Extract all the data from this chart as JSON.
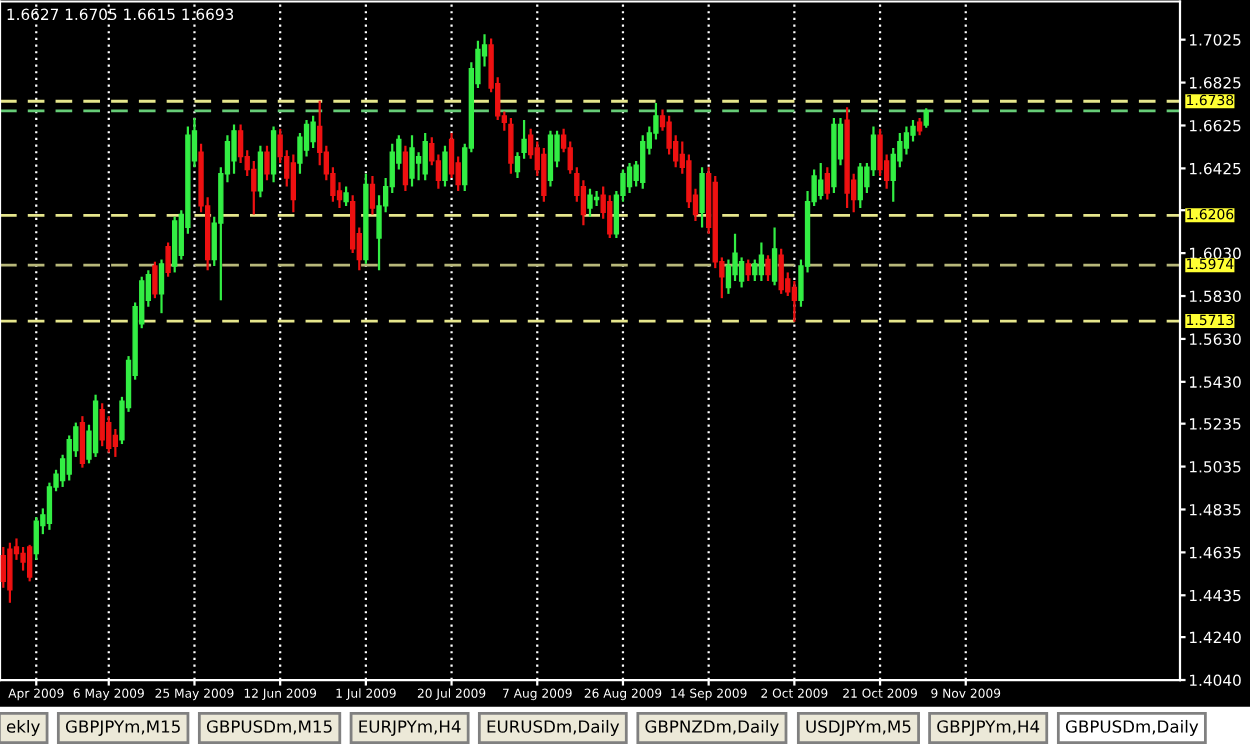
{
  "chart_data": {
    "type": "candlestick",
    "categories": [
      null,
      null,
      null,
      null,
      null,
      "Apr 2009",
      null,
      null,
      null,
      null,
      null,
      null,
      null,
      null,
      null,
      null,
      "6 May 2009",
      null,
      null,
      null,
      null,
      null,
      null,
      null,
      null,
      null,
      null,
      null,
      null,
      "25 May 2009",
      null,
      null,
      null,
      null,
      null,
      null,
      null,
      null,
      null,
      null,
      null,
      null,
      "12 Jun 2009",
      null,
      null,
      null,
      null,
      null,
      null,
      null,
      null,
      null,
      null,
      null,
      null,
      "1 Jul 2009",
      null,
      null,
      null,
      null,
      null,
      null,
      null,
      null,
      null,
      null,
      null,
      null,
      "20 Jul 2009",
      null,
      null,
      null,
      null,
      null,
      null,
      null,
      null,
      null,
      null,
      null,
      null,
      "7 Aug 2009",
      null,
      null,
      null,
      null,
      null,
      null,
      null,
      null,
      null,
      null,
      null,
      null,
      "26 Aug 2009",
      null,
      null,
      null,
      null,
      null,
      null,
      null,
      null,
      null,
      null,
      null,
      null,
      "14 Sep 2009",
      null,
      null,
      null,
      null,
      null,
      null,
      null,
      null,
      null,
      null,
      null,
      null,
      "2 Oct 2009",
      null,
      null,
      null,
      null,
      null,
      null,
      null,
      null,
      null,
      null,
      null,
      null,
      "21 Oct 2009",
      null,
      null,
      null,
      null,
      null,
      null,
      null,
      null,
      null,
      null,
      null,
      null,
      "9 Nov 2009",
      null,
      null,
      null,
      null,
      null,
      null,
      null,
      null,
      null,
      null,
      null,
      null,
      null,
      null,
      null,
      null,
      null,
      null,
      null,
      null,
      null,
      null,
      null,
      null,
      null,
      null,
      null,
      null,
      null,
      null,
      null,
      null
    ],
    "ohlc": [
      [
        1.462,
        1.466,
        1.447,
        1.45
      ],
      [
        1.465,
        1.468,
        1.44,
        1.446
      ],
      [
        1.466,
        1.47,
        1.46,
        1.463
      ],
      [
        1.463,
        1.466,
        1.455,
        1.459
      ],
      [
        1.466,
        1.467,
        1.45,
        1.452
      ],
      [
        1.463,
        1.48,
        1.46,
        1.478
      ],
      [
        1.476,
        1.484,
        1.472,
        1.481
      ],
      [
        1.477,
        1.496,
        1.474,
        1.494
      ],
      [
        1.494,
        1.502,
        1.492,
        1.5
      ],
      [
        1.497,
        1.509,
        1.494,
        1.507
      ],
      [
        1.5,
        1.518,
        1.497,
        1.516
      ],
      [
        1.511,
        1.524,
        1.508,
        1.522
      ],
      [
        1.524,
        1.527,
        1.503,
        1.505
      ],
      [
        1.507,
        1.523,
        1.505,
        1.52
      ],
      [
        1.51,
        1.537,
        1.508,
        1.534
      ],
      [
        1.53,
        1.533,
        1.513,
        1.516
      ],
      [
        1.524,
        1.527,
        1.51,
        1.512
      ],
      [
        1.518,
        1.521,
        1.508,
        1.513
      ],
      [
        1.516,
        1.536,
        1.514,
        1.534
      ],
      [
        1.531,
        1.555,
        1.529,
        1.553
      ],
      [
        1.546,
        1.58,
        1.544,
        1.578
      ],
      [
        1.57,
        1.592,
        1.568,
        1.59
      ],
      [
        1.581,
        1.595,
        1.578,
        1.593
      ],
      [
        1.597,
        1.599,
        1.582,
        1.584
      ],
      [
        1.584,
        1.6,
        1.575,
        1.598
      ],
      [
        1.606,
        1.608,
        1.592,
        1.594
      ],
      [
        1.597,
        1.62,
        1.594,
        1.618
      ],
      [
        1.602,
        1.623,
        1.6,
        1.621
      ],
      [
        1.615,
        1.662,
        1.612,
        1.658
      ],
      [
        1.646,
        1.666,
        1.643,
        1.66
      ],
      [
        1.65,
        1.654,
        1.622,
        1.625
      ],
      [
        1.625,
        1.629,
        1.595,
        1.6
      ],
      [
        1.6,
        1.62,
        1.597,
        1.617
      ],
      [
        1.617,
        1.643,
        1.581,
        1.64
      ],
      [
        1.64,
        1.658,
        1.636,
        1.655
      ],
      [
        1.646,
        1.663,
        1.64,
        1.66
      ],
      [
        1.66,
        1.663,
        1.645,
        1.648
      ],
      [
        1.648,
        1.651,
        1.639,
        1.642
      ],
      [
        1.642,
        1.646,
        1.621,
        1.632
      ],
      [
        1.632,
        1.653,
        1.629,
        1.65
      ],
      [
        1.65,
        1.653,
        1.637,
        1.64
      ],
      [
        1.64,
        1.662,
        1.636,
        1.66
      ],
      [
        1.658,
        1.661,
        1.645,
        1.648
      ],
      [
        1.648,
        1.651,
        1.634,
        1.638
      ],
      [
        1.645,
        1.649,
        1.622,
        1.628
      ],
      [
        1.645,
        1.659,
        1.64,
        1.657
      ],
      [
        1.651,
        1.665,
        1.648,
        1.663
      ],
      [
        1.655,
        1.667,
        1.652,
        1.664
      ],
      [
        1.662,
        1.674,
        1.644,
        1.65
      ],
      [
        1.65,
        1.653,
        1.637,
        1.64
      ],
      [
        1.64,
        1.643,
        1.627,
        1.63
      ],
      [
        1.632,
        1.636,
        1.624,
        1.628
      ],
      [
        1.627,
        1.634,
        1.625,
        1.631
      ],
      [
        1.627,
        1.63,
        1.603,
        1.605
      ],
      [
        1.612,
        1.615,
        1.595,
        1.6
      ],
      [
        1.6,
        1.64,
        1.598,
        1.635
      ],
      [
        1.635,
        1.639,
        1.621,
        1.624
      ],
      [
        1.61,
        1.63,
        1.595,
        1.625
      ],
      [
        1.625,
        1.638,
        1.622,
        1.634
      ],
      [
        1.634,
        1.654,
        1.631,
        1.65
      ],
      [
        1.645,
        1.658,
        1.642,
        1.656
      ],
      [
        1.65,
        1.653,
        1.632,
        1.635
      ],
      [
        1.638,
        1.658,
        1.634,
        1.652
      ],
      [
        1.645,
        1.65,
        1.637,
        1.648
      ],
      [
        1.64,
        1.659,
        1.637,
        1.655
      ],
      [
        1.654,
        1.657,
        1.644,
        1.646
      ],
      [
        1.646,
        1.649,
        1.633,
        1.637
      ],
      [
        1.637,
        1.653,
        1.634,
        1.65
      ],
      [
        1.656,
        1.659,
        1.638,
        1.64
      ],
      [
        1.645,
        1.648,
        1.632,
        1.635
      ],
      [
        1.635,
        1.654,
        1.632,
        1.652
      ],
      [
        1.652,
        1.692,
        1.65,
        1.689
      ],
      [
        1.682,
        1.702,
        1.68,
        1.698
      ],
      [
        1.695,
        1.705,
        1.69,
        1.7
      ],
      [
        1.7,
        1.703,
        1.678,
        1.68
      ],
      [
        1.682,
        1.685,
        1.665,
        1.667
      ],
      [
        1.667,
        1.669,
        1.66,
        1.664
      ],
      [
        1.663,
        1.666,
        1.64,
        1.645
      ],
      [
        1.641,
        1.65,
        1.638,
        1.648
      ],
      [
        1.65,
        1.665,
        1.647,
        1.656
      ],
      [
        1.658,
        1.661,
        1.647,
        1.649
      ],
      [
        1.652,
        1.655,
        1.639,
        1.642
      ],
      [
        1.649,
        1.652,
        1.627,
        1.63
      ],
      [
        1.637,
        1.66,
        1.634,
        1.658
      ],
      [
        1.646,
        1.66,
        1.643,
        1.658
      ],
      [
        1.658,
        1.661,
        1.65,
        1.652
      ],
      [
        1.652,
        1.655,
        1.64,
        1.642
      ],
      [
        1.64,
        1.643,
        1.627,
        1.63
      ],
      [
        1.634,
        1.637,
        1.616,
        1.621
      ],
      [
        1.624,
        1.633,
        1.62,
        1.63
      ],
      [
        1.628,
        1.632,
        1.625,
        1.629
      ],
      [
        1.63,
        1.634,
        1.619,
        1.622
      ],
      [
        1.627,
        1.63,
        1.61,
        1.612
      ],
      [
        1.612,
        1.632,
        1.61,
        1.63
      ],
      [
        1.63,
        1.642,
        1.627,
        1.64
      ],
      [
        1.634,
        1.645,
        1.631,
        1.643
      ],
      [
        1.637,
        1.646,
        1.634,
        1.644
      ],
      [
        1.636,
        1.658,
        1.633,
        1.655
      ],
      [
        1.652,
        1.662,
        1.649,
        1.659
      ],
      [
        1.659,
        1.673,
        1.656,
        1.667
      ],
      [
        1.667,
        1.67,
        1.66,
        1.662
      ],
      [
        1.664,
        1.667,
        1.649,
        1.652
      ],
      [
        1.655,
        1.658,
        1.643,
        1.646
      ],
      [
        1.649,
        1.655,
        1.64,
        1.643
      ],
      [
        1.646,
        1.649,
        1.624,
        1.627
      ],
      [
        1.63,
        1.633,
        1.618,
        1.621
      ],
      [
        1.622,
        1.643,
        1.615,
        1.64
      ],
      [
        1.64,
        1.643,
        1.612,
        1.615
      ],
      [
        1.636,
        1.639,
        1.596,
        1.599
      ],
      [
        1.599,
        1.601,
        1.582,
        1.592
      ],
      [
        1.587,
        1.6,
        1.584,
        1.597
      ],
      [
        1.593,
        1.612,
        1.59,
        1.603
      ],
      [
        1.59,
        1.601,
        1.587,
        1.599
      ],
      [
        1.598,
        1.6,
        1.59,
        1.593
      ],
      [
        1.593,
        1.6,
        1.59,
        1.598
      ],
      [
        1.593,
        1.608,
        1.59,
        1.602
      ],
      [
        1.6,
        1.602,
        1.59,
        1.593
      ],
      [
        1.59,
        1.615,
        1.588,
        1.605
      ],
      [
        1.602,
        1.605,
        1.584,
        1.586
      ],
      [
        1.591,
        1.594,
        1.583,
        1.585
      ],
      [
        1.587,
        1.59,
        1.571,
        1.581
      ],
      [
        1.581,
        1.6,
        1.578,
        1.597
      ],
      [
        1.597,
        1.632,
        1.594,
        1.627
      ],
      [
        1.627,
        1.642,
        1.625,
        1.639
      ],
      [
        1.63,
        1.645,
        1.628,
        1.637
      ],
      [
        1.64,
        1.643,
        1.628,
        1.631
      ],
      [
        1.634,
        1.666,
        1.631,
        1.663
      ],
      [
        1.647,
        1.666,
        1.644,
        1.663
      ],
      [
        1.665,
        1.671,
        1.624,
        1.631
      ],
      [
        1.637,
        1.64,
        1.622,
        1.628
      ],
      [
        1.628,
        1.645,
        1.624,
        1.643
      ],
      [
        1.634,
        1.645,
        1.631,
        1.643
      ],
      [
        1.642,
        1.662,
        1.639,
        1.658
      ],
      [
        1.658,
        1.661,
        1.639,
        1.642
      ],
      [
        1.646,
        1.649,
        1.633,
        1.637
      ],
      [
        1.637,
        1.652,
        1.627,
        1.649
      ],
      [
        1.646,
        1.659,
        1.643,
        1.655
      ],
      [
        1.652,
        1.662,
        1.649,
        1.659
      ],
      [
        1.658,
        1.665,
        1.655,
        1.662
      ],
      [
        1.664,
        1.666,
        1.658,
        1.66
      ],
      [
        1.6627,
        1.6705,
        1.6615,
        1.6693
      ],
      null,
      null,
      null,
      null,
      null,
      null,
      null,
      null,
      null,
      null,
      null,
      null,
      null,
      null,
      null,
      null,
      null,
      null,
      null,
      null,
      null,
      null,
      null,
      null,
      null,
      null,
      null,
      null,
      null,
      null,
      null,
      null,
      null,
      null,
      null,
      null,
      null,
      null
    ],
    "colors": [
      "#ee1111",
      "#ee1111",
      "#ee1111",
      "#ee1111",
      "#ee1111",
      "#33ee44",
      "#33ee44",
      "#33ee44",
      "#33ee44",
      "#33ee44",
      "#33ee44",
      "#33ee44",
      "#ee1111",
      "#33ee44",
      "#33ee44",
      "#ee1111",
      "#ee1111",
      "#ee1111",
      "#33ee44",
      "#33ee44",
      "#33ee44",
      "#33ee44",
      "#33ee44",
      "#ee1111",
      "#33ee44",
      "#ee1111",
      "#33ee44",
      "#33ee44",
      "#33ee44",
      "#33ee44",
      "#ee1111",
      "#ee1111",
      "#33ee44",
      "#33ee44",
      "#33ee44",
      "#33ee44",
      "#ee1111",
      "#ee1111",
      "#ee1111",
      "#33ee44",
      "#ee1111",
      "#33ee44",
      "#ee1111",
      "#ee1111",
      "#ee1111",
      "#33ee44",
      "#33ee44",
      "#33ee44",
      "#ee1111",
      "#ee1111",
      "#ee1111",
      "#ee1111",
      "#33ee44",
      "#ee1111",
      "#ee1111",
      "#33ee44",
      "#ee1111",
      "#33ee44",
      "#33ee44",
      "#33ee44",
      "#33ee44",
      "#ee1111",
      "#33ee44",
      "#33ee44",
      "#33ee44",
      "#ee1111",
      "#ee1111",
      "#33ee44",
      "#ee1111",
      "#ee1111",
      "#33ee44",
      "#33ee44",
      "#33ee44",
      "#33ee44",
      "#ee1111",
      "#ee1111",
      "#ee1111",
      "#ee1111",
      "#33ee44",
      "#33ee44",
      "#ee1111",
      "#ee1111",
      "#ee1111",
      "#33ee44",
      "#33ee44",
      "#ee1111",
      "#ee1111",
      "#ee1111",
      "#ee1111",
      "#33ee44",
      "#33ee44",
      "#ee1111",
      "#ee1111",
      "#33ee44",
      "#33ee44",
      "#33ee44",
      "#33ee44",
      "#33ee44",
      "#33ee44",
      "#33ee44",
      "#ee1111",
      "#ee1111",
      "#ee1111",
      "#ee1111",
      "#ee1111",
      "#ee1111",
      "#33ee44",
      "#ee1111",
      "#ee1111",
      "#ee1111",
      "#33ee44",
      "#33ee44",
      "#33ee44",
      "#ee1111",
      "#33ee44",
      "#33ee44",
      "#ee1111",
      "#33ee44",
      "#ee1111",
      "#ee1111",
      "#ee1111",
      "#33ee44",
      "#33ee44",
      "#33ee44",
      "#33ee44",
      "#ee1111",
      "#33ee44",
      "#33ee44",
      "#ee1111",
      "#ee1111",
      "#33ee44",
      "#33ee44",
      "#33ee44",
      "#ee1111",
      "#ee1111",
      "#33ee44",
      "#33ee44",
      "#33ee44",
      "#33ee44",
      "#ee1111",
      "#33ee44",
      null,
      null,
      null,
      null,
      null,
      null,
      null,
      null,
      null,
      null,
      null,
      null,
      null,
      null,
      null,
      null,
      null,
      null,
      null,
      null,
      null,
      null,
      null,
      null,
      null,
      null,
      null,
      null,
      null,
      null,
      null,
      null,
      null,
      null,
      null,
      null,
      null,
      null
    ],
    "ylim": [
      1.404,
      1.7203
    ],
    "yticks": [
      {
        "value": 1.404,
        "label": "1.4040"
      },
      {
        "value": 1.424,
        "label": "1.4240"
      },
      1.4435,
      1.4635,
      1.4835,
      1.5035,
      1.5235,
      {
        "value": 1.543,
        "label": "1.5430"
      },
      {
        "value": 1.563,
        "label": "1.5630"
      },
      {
        "value": 1.583,
        "label": "1.5830"
      },
      {
        "value": 1.603,
        "label": "1.6030"
      },
      {
        "value": 1.623,
        "label": null
      },
      1.6425,
      1.6625,
      1.6825,
      1.7025
    ],
    "grid": "x",
    "ref_lines": [
      {
        "axis": "y",
        "value": 1.6738,
        "label": "1.6738",
        "color": "#e6e68c",
        "line_style": "dashed"
      },
      {
        "axis": "y",
        "value": 1.6693,
        "color": "#66cc77",
        "line_style": "dashed"
      },
      {
        "axis": "y",
        "value": 1.6206,
        "label": "1.6206",
        "color": "#e6e68c",
        "line_style": "dashed"
      },
      {
        "axis": "y",
        "value": 1.5974,
        "label": "1.5974",
        "color": "#b8b87a",
        "line_style": "dashed"
      },
      {
        "axis": "y",
        "value": 1.5713,
        "label": "1.5713",
        "color": "#e6e68c",
        "line_style": "dashed"
      }
    ],
    "annotations": [
      "1.6627 1.6705 1.6615 1.6693",
      "ekly",
      "GBPJPYm,M15",
      "GBPUSDm,M15",
      "EURJPYm,H4",
      "EURUSDm,Daily",
      "GBPNZDm,Daily",
      "USDJPYm,M5",
      "GBPJPYm,H4",
      "GBPUSDm,Daily"
    ]
  }
}
